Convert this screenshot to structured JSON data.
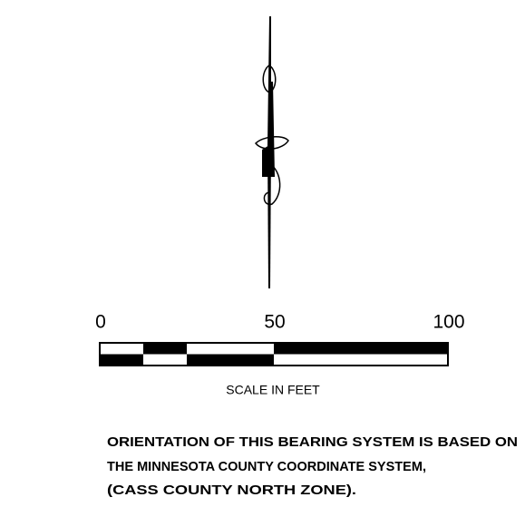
{
  "scale": {
    "labels": [
      0,
      50,
      100
    ],
    "max": 100,
    "caption": "SCALE IN FEET"
  },
  "note": {
    "lines": [
      "ORIENTATION OF THIS BEARING SYSTEM IS BASED ON",
      "THE MINNESOTA COUNTY COORDINATE SYSTEM,",
      "(CASS COUNTY NORTH ZONE)."
    ]
  }
}
